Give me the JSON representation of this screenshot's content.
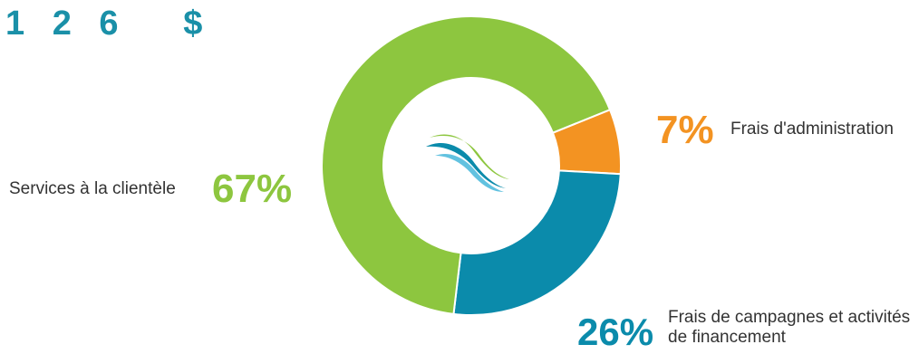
{
  "header": {
    "amount": "1 2 6   $"
  },
  "chart_data": {
    "type": "pie",
    "variant": "donut",
    "slices": [
      {
        "label": "Frais d'administration",
        "value": 7,
        "display": "7%",
        "color": "#f39322"
      },
      {
        "label": "Frais de campagnes et activités de financement",
        "value": 26,
        "display": "26%",
        "color": "#0b8bab"
      },
      {
        "label": "Services à la clientèle",
        "value": 67,
        "display": "67%",
        "color": "#8dc63f"
      }
    ],
    "center_logo": "wave-logo-icon"
  },
  "colors": {
    "headline": "#1a90a8",
    "logo_green": "#8dc63f",
    "logo_blue": "#0b8bab",
    "logo_light_blue": "#62c2e0"
  }
}
